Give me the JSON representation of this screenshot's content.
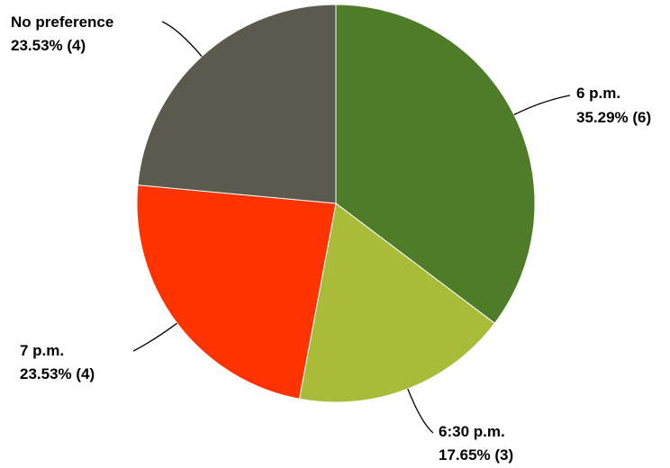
{
  "chart_data": {
    "type": "pie",
    "title": "",
    "slices": [
      {
        "label": "6 p.m.",
        "percent_text": "35.29% (6)",
        "percent": 35.29,
        "count": 6,
        "color": "#4e7c28"
      },
      {
        "label": "6:30 p.m.",
        "percent_text": "17.65% (3)",
        "percent": 17.65,
        "count": 3,
        "color": "#a9bc3a"
      },
      {
        "label": "7 p.m.",
        "percent_text": "23.53% (4)",
        "percent": 23.53,
        "count": 4,
        "color": "#ff3300"
      },
      {
        "label": "No preference",
        "percent_text": "23.53% (4)",
        "percent": 23.53,
        "count": 4,
        "color": "#5c5a4c"
      }
    ],
    "start_angle": "12 o'clock",
    "direction": "clockwise",
    "legend": "none",
    "data_labels": "outside with leader lines"
  }
}
